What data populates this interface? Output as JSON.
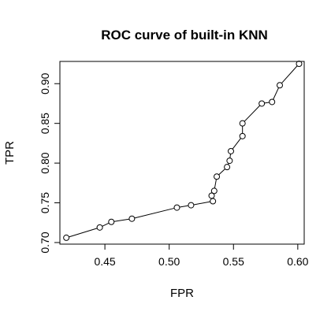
{
  "chart_data": {
    "type": "line",
    "title": "ROC curve of built-in KNN",
    "xlabel": "FPR",
    "ylabel": "TPR",
    "xlim": [
      0.415,
      0.605
    ],
    "ylim": [
      0.698,
      0.928
    ],
    "x_ticks": [
      0.45,
      0.5,
      0.55,
      0.6
    ],
    "x_tick_labels": [
      "0.45",
      "0.50",
      "0.55",
      "0.60"
    ],
    "y_ticks": [
      0.7,
      0.75,
      0.8,
      0.85,
      0.9
    ],
    "y_tick_labels": [
      "0.70",
      "0.75",
      "0.80",
      "0.85",
      "0.90"
    ],
    "grid": false,
    "series": [
      {
        "name": "ROC",
        "marker": "open-circle",
        "x": [
          0.42,
          0.446,
          0.455,
          0.471,
          0.506,
          0.517,
          0.534,
          0.533,
          0.535,
          0.537,
          0.545,
          0.547,
          0.548,
          0.557,
          0.557,
          0.572,
          0.58,
          0.586,
          0.601
        ],
        "y": [
          0.706,
          0.719,
          0.726,
          0.73,
          0.744,
          0.747,
          0.752,
          0.759,
          0.765,
          0.783,
          0.795,
          0.803,
          0.815,
          0.834,
          0.85,
          0.875,
          0.877,
          0.898,
          0.925
        ]
      }
    ]
  }
}
